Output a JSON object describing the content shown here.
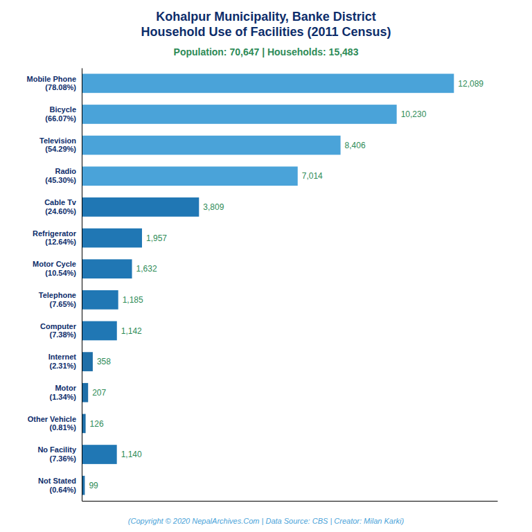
{
  "chart_data": {
    "type": "bar",
    "orientation": "horizontal",
    "title": "Kohalpur Municipality, Banke District\nHousehold Use of Facilities (2011 Census)",
    "subtitle": "Population: 70,647 | Households: 15,483",
    "annotations": [
      "(Copyright © 2020 NepalArchives.Com | Data Source: CBS | Creator: Milan Karki)"
    ],
    "categories": [
      "Mobile Phone\n(78.08%)",
      "Bicycle\n(66.07%)",
      "Television\n(54.29%)",
      "Radio\n(45.30%)",
      "Cable Tv\n(24.60%)",
      "Refrigerator\n(12.64%)",
      "Motor Cycle\n(10.54%)",
      "Telephone\n(7.65%)",
      "Computer\n(7.38%)",
      "Internet\n(2.31%)",
      "Motor\n(1.34%)",
      "Other Vehicle\n(0.81%)",
      "No Facility\n(7.36%)",
      "Not Stated\n(0.64%)"
    ],
    "values": [
      12089,
      10230,
      8406,
      7014,
      3809,
      1957,
      1632,
      1185,
      1142,
      358,
      207,
      126,
      1140,
      99
    ],
    "value_labels": [
      "12,089",
      "10,230",
      "8,406",
      "7,014",
      "3,809",
      "1,957",
      "1,632",
      "1,185",
      "1,142",
      "358",
      "207",
      "126",
      "1,140",
      "99"
    ],
    "data_labels": true,
    "colors": [
      "#4aa3d9",
      "#4aa3d9",
      "#4aa3d9",
      "#4aa3d9",
      "#2077b4",
      "#2077b4",
      "#2077b4",
      "#2077b4",
      "#2077b4",
      "#1f6fa8",
      "#1f6fa8",
      "#1f6fa8",
      "#2077b4",
      "#1f6fa8"
    ],
    "xlim": [
      0,
      13500
    ],
    "tick_labels": "y",
    "grid": false
  }
}
